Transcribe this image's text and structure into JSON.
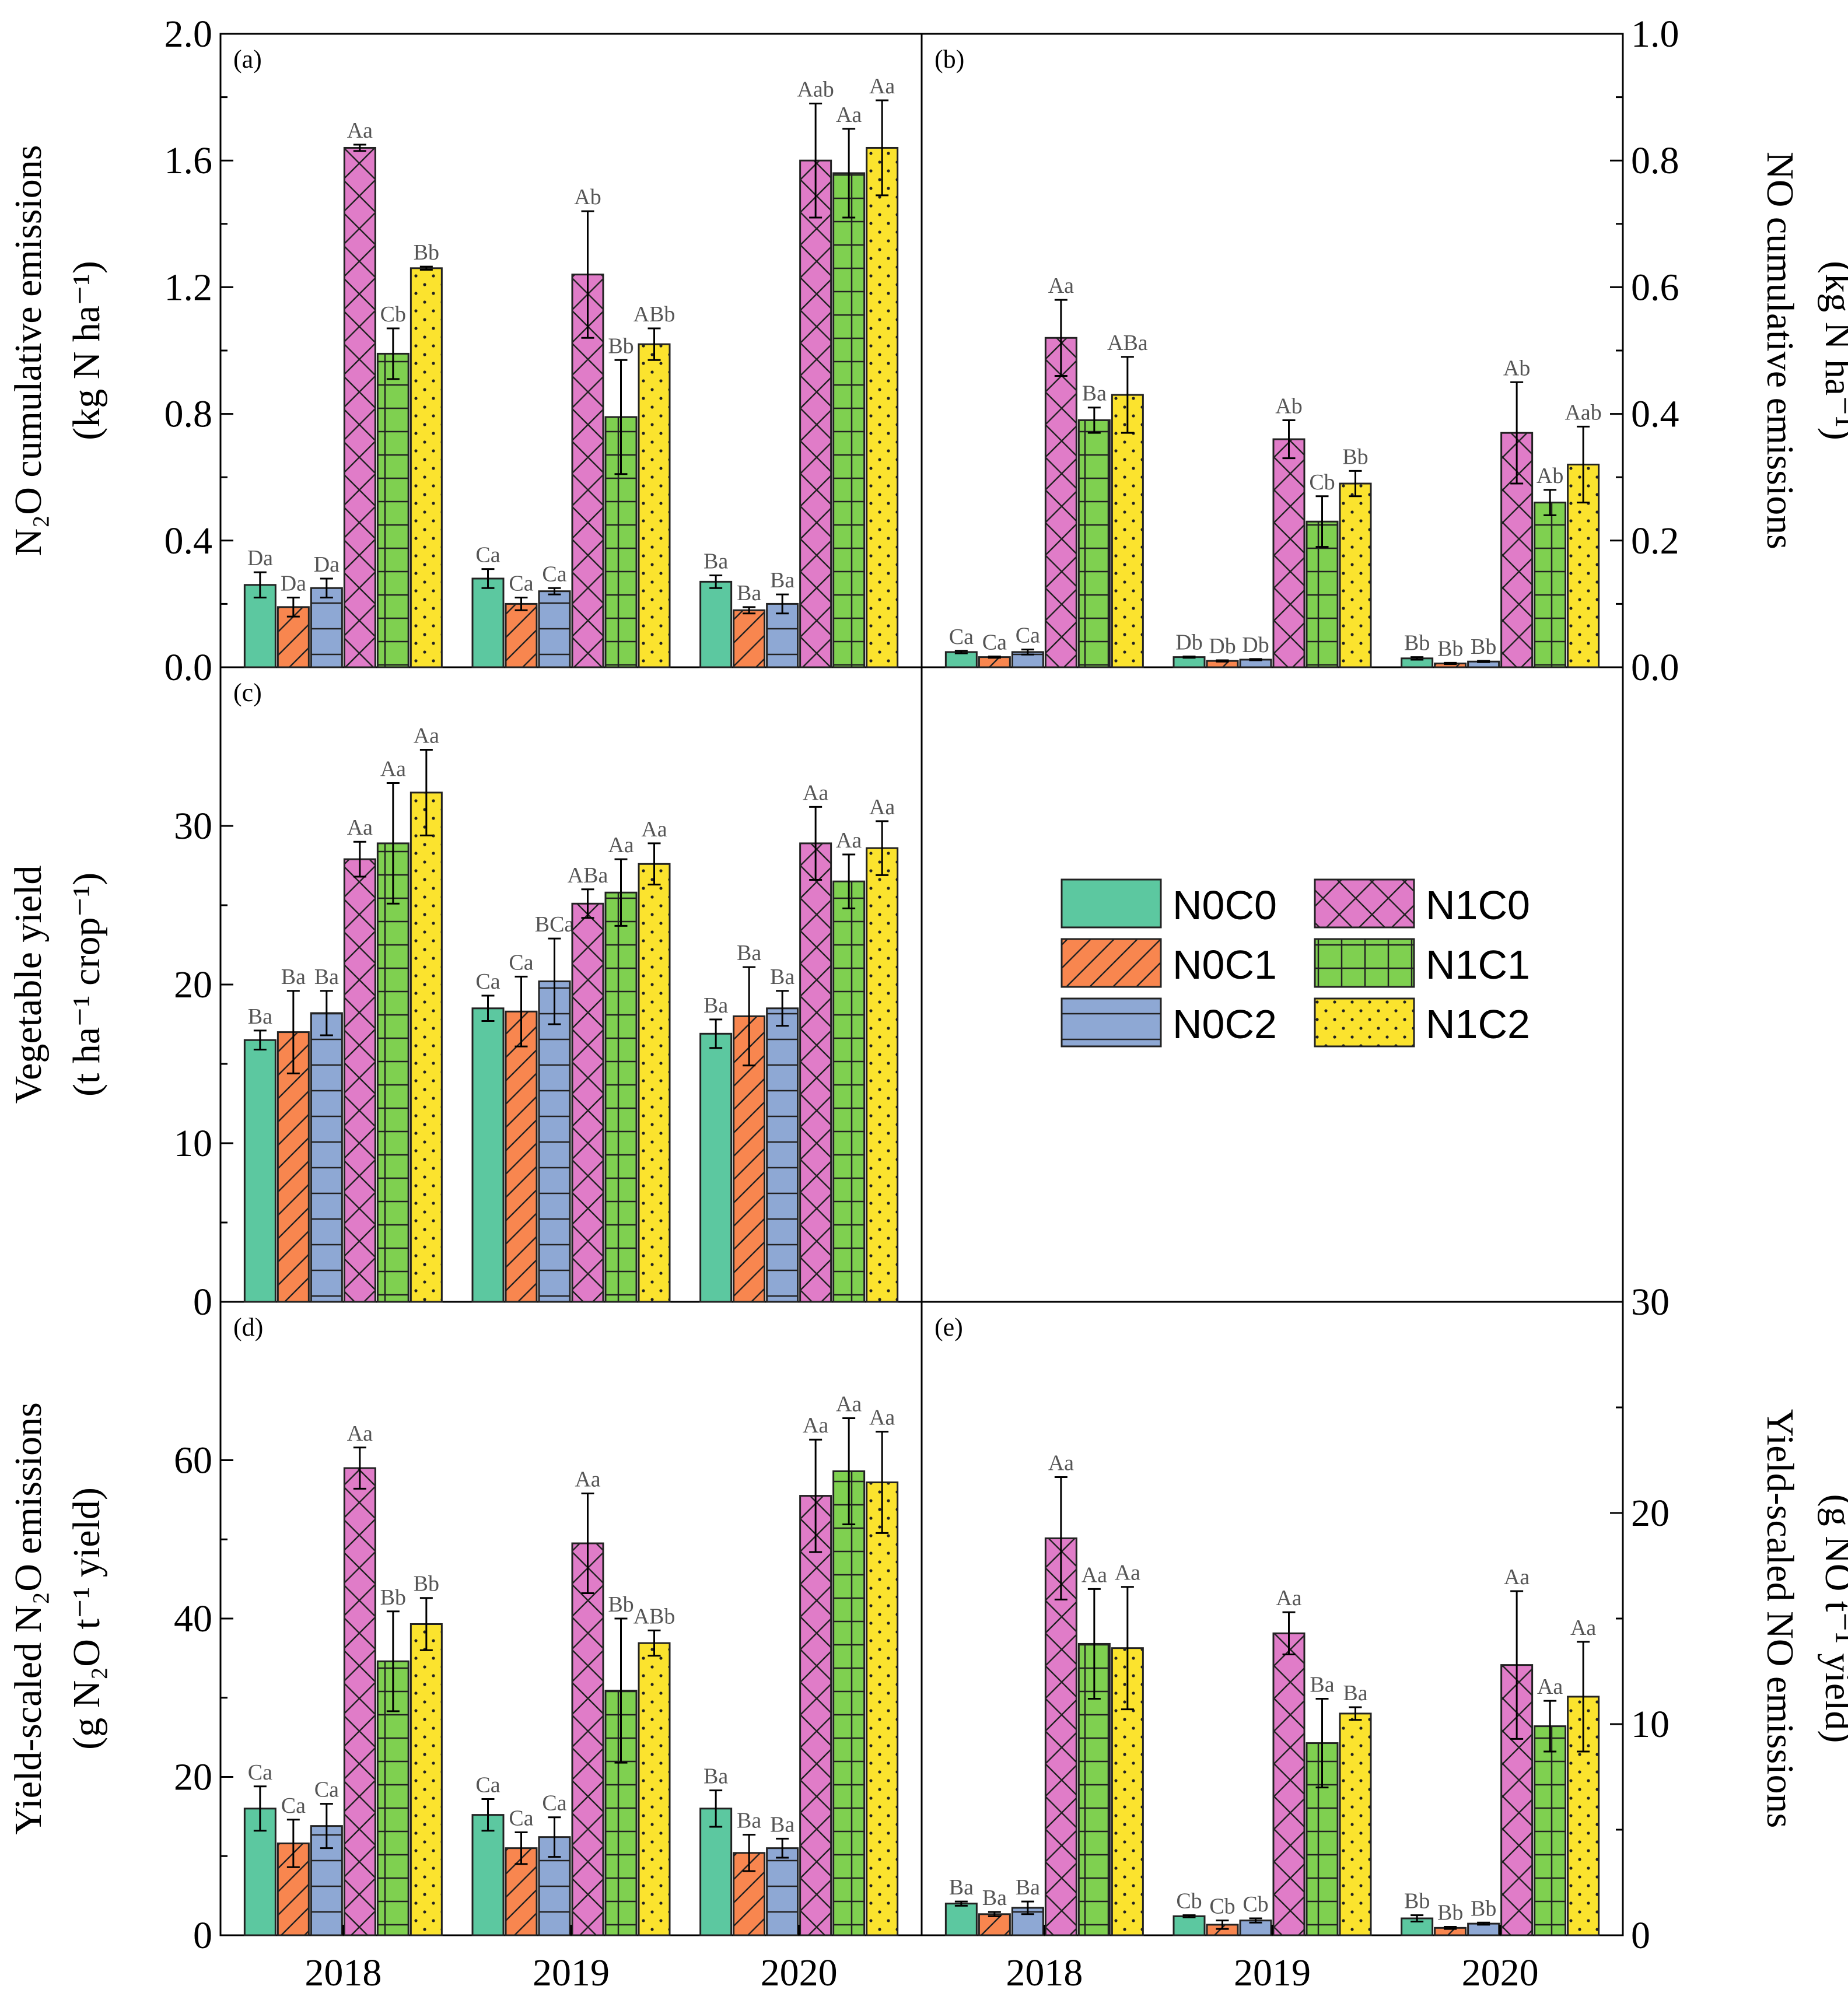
{
  "chart_data": {
    "type": "bar",
    "treatments": [
      "N0C0",
      "N0C1",
      "N0C2",
      "N1C0",
      "N1C1",
      "N1C2"
    ],
    "categories": [
      "2018",
      "2019",
      "2020"
    ],
    "colors": {
      "N0C0": "#5cc8a0",
      "N0C1": "#f8864f",
      "N0C2": "#8ea8d4",
      "N1C0": "#e07cc8",
      "N1C1": "#7fd050",
      "N1C2": "#fbe32e"
    },
    "legend": [
      {
        "name": "N0C0",
        "pattern": "none"
      },
      {
        "name": "N1C0",
        "pattern": "crosshatch"
      },
      {
        "name": "N0C1",
        "pattern": "diagonal"
      },
      {
        "name": "N1C1",
        "pattern": "grid"
      },
      {
        "name": "N0C2",
        "pattern": "horizontal"
      },
      {
        "name": "N1C2",
        "pattern": "dots"
      }
    ],
    "panels": [
      {
        "id": "a",
        "label": "(a)",
        "ylabel_lines": [
          "N₂O cumulative emissions",
          "(kg N ha⁻¹)"
        ],
        "ylim": [
          0,
          2.0
        ],
        "yticks": [
          "0.0",
          "0.4",
          "0.8",
          "1.2",
          "1.6",
          "2.0"
        ],
        "ytick_values": [
          0,
          0.4,
          0.8,
          1.2,
          1.6,
          2.0
        ],
        "series": [
          {
            "name": "N0C0",
            "values": [
              0.26,
              0.28,
              0.27
            ],
            "errors": [
              0.04,
              0.03,
              0.02
            ],
            "sig": [
              "Da",
              "Ca",
              "Ba"
            ]
          },
          {
            "name": "N0C1",
            "values": [
              0.19,
              0.2,
              0.18
            ],
            "errors": [
              0.03,
              0.02,
              0.01
            ],
            "sig": [
              "Da",
              "Ca",
              "Ba"
            ]
          },
          {
            "name": "N0C2",
            "values": [
              0.25,
              0.24,
              0.2
            ],
            "errors": [
              0.03,
              0.01,
              0.03
            ],
            "sig": [
              "Da",
              "Ca",
              "Ba"
            ]
          },
          {
            "name": "N1C0",
            "values": [
              1.64,
              1.24,
              1.6
            ],
            "errors": [
              0.01,
              0.2,
              0.18
            ],
            "sig": [
              "Aa",
              "Ab",
              "Aab"
            ]
          },
          {
            "name": "N1C1",
            "values": [
              0.99,
              0.79,
              1.56
            ],
            "errors": [
              0.08,
              0.18,
              0.14
            ],
            "sig": [
              "Cb",
              "Bb",
              "Aa"
            ]
          },
          {
            "name": "N1C2",
            "values": [
              1.26,
              1.02,
              1.64
            ],
            "errors": [
              0.005,
              0.05,
              0.15
            ],
            "sig": [
              "Bb",
              "ABb",
              "Aa"
            ]
          }
        ]
      },
      {
        "id": "b",
        "label": "(b)",
        "ylabel_lines": [
          "NO cumulative emissions",
          "(kg N ha⁻¹)"
        ],
        "ylim": [
          0,
          1.0
        ],
        "yticks": [
          "0.0",
          "0.2",
          "0.4",
          "0.6",
          "0.8",
          "1.0"
        ],
        "ytick_values": [
          0,
          0.2,
          0.4,
          0.6,
          0.8,
          1.0
        ],
        "series": [
          {
            "name": "N0C0",
            "values": [
              0.024,
              0.016,
              0.014
            ],
            "errors": [
              0.002,
              0.001,
              0.002
            ],
            "sig": [
              "Ca",
              "Db",
              "Bb"
            ]
          },
          {
            "name": "N0C1",
            "values": [
              0.016,
              0.01,
              0.006
            ],
            "errors": [
              0.001,
              0.001,
              0.001
            ],
            "sig": [
              "Ca",
              "Db",
              "Bb"
            ]
          },
          {
            "name": "N0C2",
            "values": [
              0.024,
              0.012,
              0.009
            ],
            "errors": [
              0.004,
              0.001,
              0.001
            ],
            "sig": [
              "Ca",
              "Db",
              "Bb"
            ]
          },
          {
            "name": "N1C0",
            "values": [
              0.52,
              0.36,
              0.37
            ],
            "errors": [
              0.06,
              0.03,
              0.08
            ],
            "sig": [
              "Aa",
              "Ab",
              "Ab"
            ]
          },
          {
            "name": "N1C1",
            "values": [
              0.39,
              0.23,
              0.26
            ],
            "errors": [
              0.02,
              0.04,
              0.02
            ],
            "sig": [
              "Ba",
              "Cb",
              "Ab"
            ]
          },
          {
            "name": "N1C2",
            "values": [
              0.43,
              0.29,
              0.32
            ],
            "errors": [
              0.06,
              0.02,
              0.06
            ],
            "sig": [
              "ABa",
              "Bb",
              "Aab"
            ]
          }
        ]
      },
      {
        "id": "c",
        "label": "(c)",
        "ylabel_lines": [
          "Vegetable yield",
          "(t ha⁻¹ crop⁻¹)"
        ],
        "ylim": [
          0,
          40
        ],
        "yticks": [
          "0",
          "10",
          "20",
          "30"
        ],
        "ytick_values": [
          0,
          10,
          20,
          30
        ],
        "series": [
          {
            "name": "N0C0",
            "values": [
              16.5,
              18.5,
              16.9
            ],
            "errors": [
              0.6,
              0.8,
              0.9
            ],
            "sig": [
              "Ba",
              "Ca",
              "Ba"
            ]
          },
          {
            "name": "N0C1",
            "values": [
              17.0,
              18.3,
              18.0
            ],
            "errors": [
              2.6,
              2.2,
              3.1
            ],
            "sig": [
              "Ba",
              "Ca",
              "Ba"
            ]
          },
          {
            "name": "N0C2",
            "values": [
              18.2,
              20.2,
              18.5
            ],
            "errors": [
              1.4,
              2.7,
              1.1
            ],
            "sig": [
              "Ba",
              "BCa",
              "Ba"
            ]
          },
          {
            "name": "N1C0",
            "values": [
              27.9,
              25.1,
              28.9
            ],
            "errors": [
              1.1,
              0.9,
              2.3
            ],
            "sig": [
              "Aa",
              "ABa",
              "Aa"
            ]
          },
          {
            "name": "N1C1",
            "values": [
              28.9,
              25.8,
              26.5
            ],
            "errors": [
              3.8,
              2.1,
              1.7
            ],
            "sig": [
              "Aa",
              "Aa",
              "Aa"
            ]
          },
          {
            "name": "N1C2",
            "values": [
              32.1,
              27.6,
              28.6
            ],
            "errors": [
              2.7,
              1.3,
              1.7
            ],
            "sig": [
              "Aa",
              "Aa",
              "Aa"
            ]
          }
        ]
      },
      {
        "id": "d",
        "label": "(d)",
        "ylabel_lines": [
          "Yield-scaled N₂O emissions",
          "(g N₂O t⁻¹ yield)"
        ],
        "ylim": [
          0,
          80
        ],
        "yticks": [
          "0",
          "20",
          "40",
          "60"
        ],
        "ytick_values": [
          0,
          20,
          40,
          60
        ],
        "series": [
          {
            "name": "N0C0",
            "values": [
              16.0,
              15.2,
              16.0
            ],
            "errors": [
              2.8,
              2.0,
              2.3
            ],
            "sig": [
              "Ca",
              "Ca",
              "Ba"
            ]
          },
          {
            "name": "N0C1",
            "values": [
              11.6,
              11.0,
              10.4
            ],
            "errors": [
              3.0,
              2.0,
              2.3
            ],
            "sig": [
              "Ca",
              "Ca",
              "Ba"
            ]
          },
          {
            "name": "N0C2",
            "values": [
              13.8,
              12.4,
              11.0
            ],
            "errors": [
              2.8,
              2.5,
              1.2
            ],
            "sig": [
              "Ca",
              "Ca",
              "Ba"
            ]
          },
          {
            "name": "N1C0",
            "values": [
              59.0,
              49.5,
              55.5
            ],
            "errors": [
              2.6,
              6.3,
              7.1
            ],
            "sig": [
              "Aa",
              "Aa",
              "Aa"
            ]
          },
          {
            "name": "N1C1",
            "values": [
              34.6,
              30.9,
              58.6
            ],
            "errors": [
              6.3,
              9.1,
              6.7
            ],
            "sig": [
              "Bb",
              "Bb",
              "Aa"
            ]
          },
          {
            "name": "N1C2",
            "values": [
              39.3,
              36.9,
              57.2
            ],
            "errors": [
              3.3,
              1.6,
              6.4
            ],
            "sig": [
              "Bb",
              "ABb",
              "Aa"
            ]
          }
        ]
      },
      {
        "id": "e",
        "label": "(e)",
        "ylabel_lines": [
          "Yield-scaled NO emissions",
          "(g NO t⁻¹ yield)"
        ],
        "ylim": [
          0,
          30
        ],
        "yticks": [
          "0",
          "10",
          "20",
          "30"
        ],
        "ytick_values": [
          0,
          10,
          20,
          30
        ],
        "series": [
          {
            "name": "N0C0",
            "values": [
              1.5,
              0.9,
              0.8
            ],
            "errors": [
              0.1,
              0.05,
              0.15
            ],
            "sig": [
              "Ba",
              "Cb",
              "Bb"
            ]
          },
          {
            "name": "N0C1",
            "values": [
              1.0,
              0.5,
              0.35
            ],
            "errors": [
              0.1,
              0.2,
              0.05
            ],
            "sig": [
              "Ba",
              "Cb",
              "Bb"
            ]
          },
          {
            "name": "N0C2",
            "values": [
              1.3,
              0.7,
              0.55
            ],
            "errors": [
              0.3,
              0.1,
              0.05
            ],
            "sig": [
              "Ba",
              "Cb",
              "Bb"
            ]
          },
          {
            "name": "N1C0",
            "values": [
              18.8,
              14.3,
              12.8
            ],
            "errors": [
              2.9,
              1.0,
              3.5
            ],
            "sig": [
              "Aa",
              "Aa",
              "Aa"
            ]
          },
          {
            "name": "N1C1",
            "values": [
              13.8,
              9.1,
              9.9
            ],
            "errors": [
              2.6,
              2.1,
              1.2
            ],
            "sig": [
              "Aa",
              "Ba",
              "Aa"
            ]
          },
          {
            "name": "N1C2",
            "values": [
              13.6,
              10.5,
              11.3
            ],
            "errors": [
              2.9,
              0.3,
              2.6
            ],
            "sig": [
              "Aa",
              "Ba",
              "Aa"
            ]
          }
        ]
      }
    ]
  }
}
